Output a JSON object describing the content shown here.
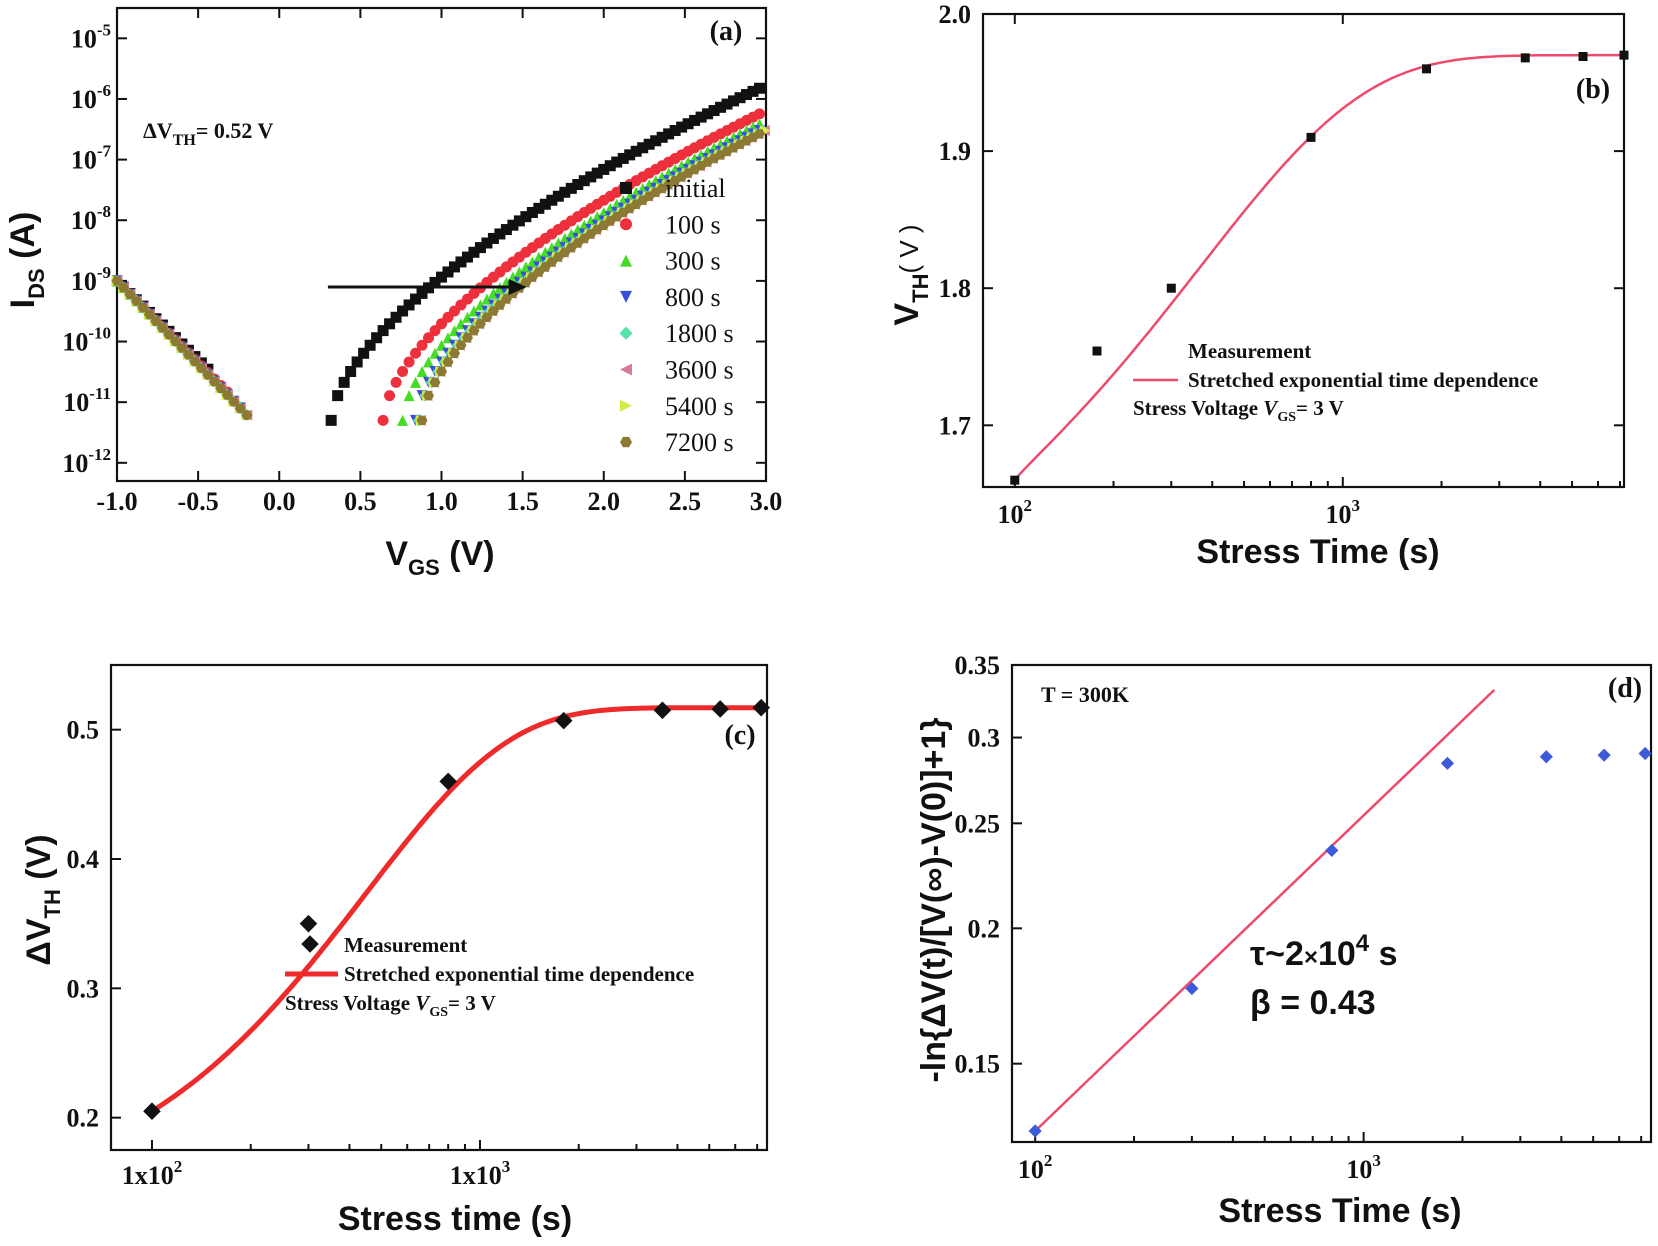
{
  "chart_data": [
    {
      "id": "a",
      "type": "scatter",
      "panel_label": "(a)",
      "xlabel": "V",
      "xlabel_sub": "GS",
      "xlabel_unit": " (V)",
      "ylabel": "I",
      "ylabel_sub": "DS",
      "ylabel_unit": " (A)",
      "xlim": [
        -1.0,
        3.0
      ],
      "ylim_log10": [
        -12.3,
        -4.5
      ],
      "y_scale": "log",
      "xticks": [
        "-1.0",
        "-0.5",
        "0.0",
        "0.5",
        "1.0",
        "1.5",
        "2.0",
        "2.5",
        "3.0"
      ],
      "yticks": [
        {
          "base": "10",
          "exp": "-5",
          "p": -5
        },
        {
          "base": "10",
          "exp": "-6",
          "p": -6
        },
        {
          "base": "10",
          "exp": "-7",
          "p": -7
        },
        {
          "base": "10",
          "exp": "-8",
          "p": -8
        },
        {
          "base": "10",
          "exp": "-9",
          "p": -9
        },
        {
          "base": "10",
          "exp": "-10",
          "p": -10
        },
        {
          "base": "10",
          "exp": "-11",
          "p": -11
        },
        {
          "base": "10",
          "exp": "-12",
          "p": -12
        }
      ],
      "annotation": {
        "prefix": "ΔV",
        "sub": "TH",
        "suffix": "= 0.52 V"
      },
      "arrow": {
        "from": [
          0.3,
          -9.1
        ],
        "to": [
          1.5,
          -9.1
        ]
      },
      "legend_position": "right",
      "series": [
        {
          "name": "initial",
          "color": "#111111",
          "marker": "square",
          "shift": 0.0
        },
        {
          "name": "100 s",
          "color": "#ee2f3c",
          "marker": "circle",
          "shift": 0.32
        },
        {
          "name": "300 s",
          "color": "#44dd22",
          "marker": "triangle-up",
          "shift": 0.44
        },
        {
          "name": "800 s",
          "color": "#3a4fd8",
          "marker": "triangle-down",
          "shift": 0.52
        },
        {
          "name": "1800 s",
          "color": "#55e3a8",
          "marker": "diamond",
          "shift": 0.54
        },
        {
          "name": "3600 s",
          "color": "#d97b9d",
          "marker": "triangle-left",
          "shift": 0.55
        },
        {
          "name": "5400 s",
          "color": "#d6ea4a",
          "marker": "triangle-right",
          "shift": 0.555
        },
        {
          "name": "7200 s",
          "color": "#8c7a34",
          "marker": "hexagon",
          "shift": 0.56
        }
      ]
    },
    {
      "id": "b",
      "type": "scatter",
      "panel_label": "(b)",
      "xlabel": "Stress Time (s)",
      "ylabel": "V",
      "ylabel_sub": "TH",
      "ylabel_unit": "( V )",
      "x_scale": "log",
      "xlim": [
        80,
        7200
      ],
      "ylim": [
        1.655,
        2.0
      ],
      "xticks": [
        {
          "base": "10",
          "exp": "2",
          "v": 100
        },
        {
          "base": "10",
          "exp": "3",
          "v": 1000
        }
      ],
      "yticks": [
        "1.7",
        "1.8",
        "1.9",
        "2.0"
      ],
      "x": [
        100,
        300,
        800,
        1800,
        3600,
        5400,
        7200
      ],
      "y": [
        1.66,
        1.8,
        1.91,
        1.96,
        1.968,
        1.969,
        1.97
      ],
      "fit": {
        "v0": 1.66,
        "dv": 0.31,
        "tau": 400,
        "beta": 0.9
      },
      "legend": [
        "Measurement",
        "Stretched exponential time dependence"
      ],
      "stress": {
        "prefix": "Stress Voltage ",
        "v": "V",
        "sub": "GS",
        "suffix": "= 3 V"
      },
      "legend_position": "bottom-right",
      "colors": {
        "points": "#111111",
        "fit": "#ee4a6c"
      }
    },
    {
      "id": "c",
      "type": "scatter",
      "panel_label": "(c)",
      "xlabel": "Stress time (s)",
      "ylabel": "ΔV",
      "ylabel_sub": "TH",
      "ylabel_unit": " (V)",
      "x_scale": "log",
      "xlim": [
        75,
        7500
      ],
      "ylim": [
        0.175,
        0.55
      ],
      "xticks": [
        {
          "base": "1x10",
          "exp": "2",
          "v": 100
        },
        {
          "base": "1x10",
          "exp": "3",
          "v": 1000
        }
      ],
      "yticks": [
        "0.2",
        "0.3",
        "0.4",
        "0.5"
      ],
      "x": [
        100,
        300,
        800,
        1800,
        3600,
        5400,
        7200
      ],
      "y": [
        0.205,
        0.35,
        0.46,
        0.507,
        0.515,
        0.516,
        0.517
      ],
      "fit": {
        "v0": 0.205,
        "dv": 0.312,
        "tau": 450,
        "beta": 1.0
      },
      "legend": [
        "Measurement",
        "Stretched exponential time dependence"
      ],
      "stress": {
        "prefix": "Stress Voltage ",
        "v": "V",
        "sub": "GS",
        "suffix": "= 3 V"
      },
      "legend_position": "bottom-center",
      "colors": {
        "points": "#111111",
        "fit": "#ee2a2a"
      }
    },
    {
      "id": "d",
      "type": "scatter",
      "panel_label": "(d)",
      "xlabel": "Stress Time (s)",
      "ylabel": "-ln{ΔV(t)/[V(∞)-V(0)]+1}",
      "x_scale": "log",
      "y_scale": "log",
      "xlim": [
        85,
        7500
      ],
      "ylim": [
        0.127,
        0.35
      ],
      "xticks": [
        {
          "base": "10",
          "exp": "2",
          "v": 100
        },
        {
          "base": "10",
          "exp": "3",
          "v": 1000
        }
      ],
      "yticks": [
        {
          "label": "0.15",
          "v": 0.15
        },
        {
          "label": "0.2",
          "v": 0.2
        },
        {
          "label": "0.25",
          "v": 0.25
        },
        {
          "label": "0.3",
          "v": 0.3
        },
        {
          "label": "0.35",
          "v": 0.35
        }
      ],
      "x": [
        100,
        300,
        800,
        1800,
        3600,
        5400,
        7200
      ],
      "y": [
        0.13,
        0.176,
        0.236,
        0.284,
        0.288,
        0.289,
        0.29
      ],
      "fit_line": {
        "x": [
          100,
          2500
        ],
        "y": [
          0.13,
          0.332
        ]
      },
      "annotation": "T = 300K",
      "tau_text": {
        "prefix": "τ~2",
        "times": "×",
        "mid": "10",
        "exp": "4",
        "suffix": " s"
      },
      "beta_text": "β = 0.43",
      "colors": {
        "points": "#3d5bd9",
        "fit": "#ee4a6c"
      }
    }
  ]
}
